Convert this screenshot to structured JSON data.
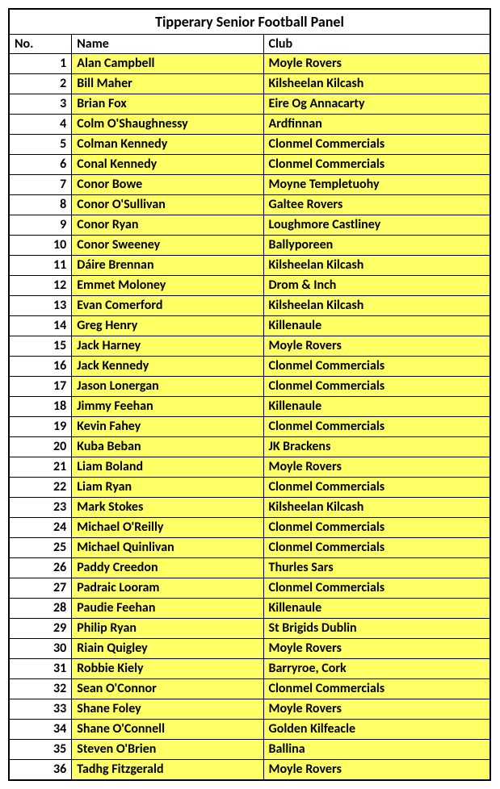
{
  "title": "Tipperary Senior Football Panel",
  "columns": {
    "no": "No.",
    "name": "Name",
    "club": "Club"
  },
  "colors": {
    "highlight": "#ffff66",
    "border": "#000000",
    "bg": "#ffffff"
  },
  "rows": [
    {
      "no": "1",
      "name": "Alan Campbell",
      "club": "Moyle Rovers"
    },
    {
      "no": "2",
      "name": "Bill Maher",
      "club": "Kilsheelan Kilcash"
    },
    {
      "no": "3",
      "name": "Brian Fox",
      "club": "Eire Og Annacarty"
    },
    {
      "no": "4",
      "name": "Colm O'Shaughnessy",
      "club": "Ardfinnan"
    },
    {
      "no": "5",
      "name": "Colman Kennedy",
      "club": "Clonmel Commercials"
    },
    {
      "no": "6",
      "name": "Conal Kennedy",
      "club": "Clonmel Commercials"
    },
    {
      "no": "7",
      "name": "Conor Bowe",
      "club": "Moyne Templetuohy"
    },
    {
      "no": "8",
      "name": "Conor O'Sullivan",
      "club": "Galtee Rovers"
    },
    {
      "no": "9",
      "name": "Conor Ryan",
      "club": "Loughmore Castliney"
    },
    {
      "no": "10",
      "name": "Conor Sweeney",
      "club": "Ballyporeen"
    },
    {
      "no": "11",
      "name": "Dáire Brennan",
      "club": "Kilsheelan Kilcash"
    },
    {
      "no": "12",
      "name": "Emmet Moloney",
      "club": "Drom & Inch"
    },
    {
      "no": "13",
      "name": "Evan Comerford",
      "club": "Kilsheelan Kilcash"
    },
    {
      "no": "14",
      "name": "Greg Henry",
      "club": "Killenaule"
    },
    {
      "no": "15",
      "name": "Jack Harney",
      "club": "Moyle Rovers"
    },
    {
      "no": "16",
      "name": "Jack Kennedy",
      "club": "Clonmel Commercials"
    },
    {
      "no": "17",
      "name": "Jason Lonergan",
      "club": "Clonmel Commercials"
    },
    {
      "no": "18",
      "name": "Jimmy Feehan",
      "club": "Killenaule"
    },
    {
      "no": "19",
      "name": "Kevin Fahey",
      "club": "Clonmel Commercials"
    },
    {
      "no": "20",
      "name": "Kuba Beban",
      "club": "JK Brackens"
    },
    {
      "no": "21",
      "name": "Liam Boland",
      "club": "Moyle Rovers"
    },
    {
      "no": "22",
      "name": "Liam Ryan",
      "club": "Clonmel Commercials"
    },
    {
      "no": "23",
      "name": "Mark Stokes",
      "club": "Kilsheelan Kilcash"
    },
    {
      "no": "24",
      "name": "Michael O'Reilly",
      "club": "Clonmel Commercials"
    },
    {
      "no": "25",
      "name": "Michael Quinlivan",
      "club": "Clonmel Commercials"
    },
    {
      "no": "26",
      "name": "Paddy Creedon",
      "club": "Thurles Sars"
    },
    {
      "no": "27",
      "name": "Padraic Looram",
      "club": "Clonmel Commercials"
    },
    {
      "no": "28",
      "name": "Paudie Feehan",
      "club": "Killenaule"
    },
    {
      "no": "29",
      "name": "Philip Ryan",
      "club": "St Brigids Dublin"
    },
    {
      "no": "30",
      "name": "Riain Quigley",
      "club": "Moyle Rovers"
    },
    {
      "no": "31",
      "name": "Robbie Kiely",
      "club": "Barryroe, Cork"
    },
    {
      "no": "32",
      "name": "Sean O'Connor",
      "club": "Clonmel Commercials"
    },
    {
      "no": "33",
      "name": "Shane Foley",
      "club": "Moyle Rovers"
    },
    {
      "no": "34",
      "name": "Shane O'Connell",
      "club": "Golden Kilfeacle"
    },
    {
      "no": "35",
      "name": "Steven O'Brien",
      "club": "Ballina"
    },
    {
      "no": "36",
      "name": "Tadhg Fitzgerald",
      "club": "Moyle Rovers"
    }
  ]
}
